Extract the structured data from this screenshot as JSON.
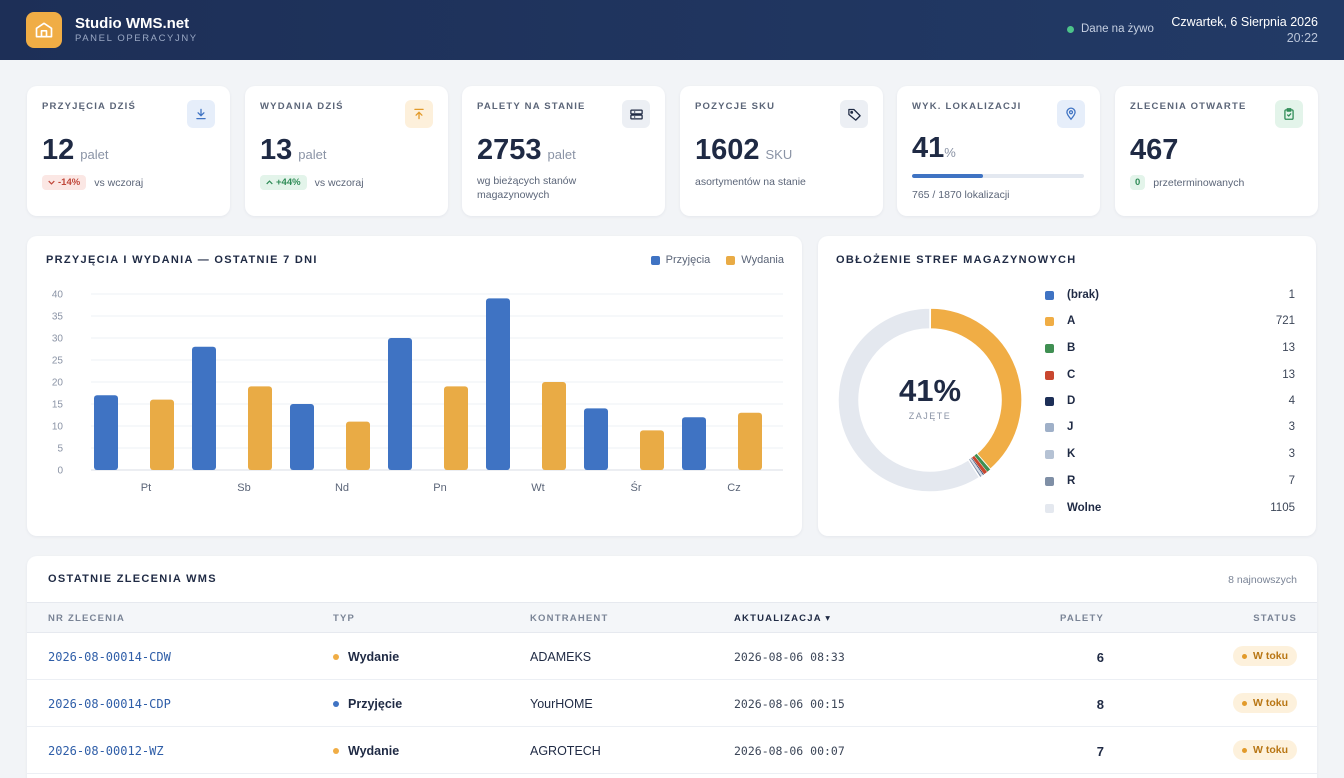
{
  "header": {
    "brand_name": "Studio WMS.net",
    "brand_sub": "PANEL OPERACYJNY",
    "live_label": "Dane na żywo",
    "date": "Czwartek, 6 Sierpnia 2026",
    "time": "20:22"
  },
  "kpis": [
    {
      "label": "PRZYJĘCIA DZIŚ",
      "value": "12",
      "unit": "palet",
      "delta": "-14%",
      "delta_dir": "down",
      "compare": "vs wczoraj",
      "icon": "download-icon"
    },
    {
      "label": "WYDANIA DZIŚ",
      "value": "13",
      "unit": "palet",
      "delta": "+44%",
      "delta_dir": "up",
      "compare": "vs wczoraj",
      "icon": "upload-icon"
    },
    {
      "label": "PALETY NA STANIE",
      "value": "2753",
      "unit": "palet",
      "description": "wg bieżących stanów magazynowych",
      "icon": "pallet-icon"
    },
    {
      "label": "POZYCJE SKU",
      "value": "1602",
      "unit": "SKU",
      "description": "asortymentów na stanie",
      "icon": "tag-icon"
    },
    {
      "label": "WYK. LOKALIZACJI",
      "value": "41",
      "unit": "%",
      "progress": 0.41,
      "progress_text": "765 / 1870 lokalizacji",
      "icon": "location-pin-icon"
    },
    {
      "label": "ZLECENIA OTWARTE",
      "value": "467",
      "badge": "0",
      "badge_text": "przeterminowanych",
      "icon": "clipboard-check-icon"
    }
  ],
  "bar_chart_panel": {
    "title": "PRZYJĘCIA I WYDANIA — OSTATNIE 7 DNI"
  },
  "zones_panel": {
    "title": "OBŁOŻENIE STREF MAGAZYNOWYCH",
    "center_value": "41%",
    "center_label": "ZAJĘTE",
    "zones": [
      {
        "name": "(brak)",
        "count": "1",
        "color": "#3f73c3"
      },
      {
        "name": "A",
        "count": "721",
        "color": "#f0ad45"
      },
      {
        "name": "B",
        "count": "13",
        "color": "#3f8f52"
      },
      {
        "name": "C",
        "count": "13",
        "color": "#c9472f"
      },
      {
        "name": "D",
        "count": "4",
        "color": "#1d2f57"
      },
      {
        "name": "J",
        "count": "3",
        "color": "#9fb0c8"
      },
      {
        "name": "K",
        "count": "3",
        "color": "#b5c2d4"
      },
      {
        "name": "R",
        "count": "7",
        "color": "#7f8fa6"
      },
      {
        "name": "Wolne",
        "count": "1105",
        "color": "#e4e8ef"
      }
    ]
  },
  "orders_table": {
    "title": "OSTATNIE ZLECENIA WMS",
    "subtitle": "8 najnowszych",
    "columns": {
      "id": "NR ZLECENIA",
      "type": "TYP",
      "contractor": "KONTRAHENT",
      "updated": "AKTUALIZACJA ▾",
      "pallets": "PALETY",
      "status": "STATUS"
    },
    "rows": [
      {
        "id": "2026-08-00014-CDW",
        "type": "Wydanie",
        "type_color": "#f0ad45",
        "contractor": "ADAMEKS",
        "updated": "2026-08-06 08:33",
        "pallets": "6",
        "status": "W toku"
      },
      {
        "id": "2026-08-00014-CDP",
        "type": "Przyjęcie",
        "type_color": "#3f73c3",
        "contractor": "YourHOME",
        "updated": "2026-08-06 00:15",
        "pallets": "8",
        "status": "W toku"
      },
      {
        "id": "2026-08-00012-WZ",
        "type": "Wydanie",
        "type_color": "#f0ad45",
        "contractor": "AGROTECH",
        "updated": "2026-08-06 00:07",
        "pallets": "7",
        "status": "W toku"
      }
    ]
  },
  "chart_data": [
    {
      "type": "bar",
      "categories": [
        "Pt",
        "Sb",
        "Nd",
        "Pn",
        "Wt",
        "Śr",
        "Cz"
      ],
      "series": [
        {
          "name": "Przyjęcia",
          "values": [
            17,
            28,
            15,
            30,
            39,
            14,
            12
          ],
          "color": "#3f73c3"
        },
        {
          "name": "Wydania",
          "values": [
            16,
            19,
            11,
            19,
            20,
            9,
            13
          ],
          "color": "#e9ab45"
        }
      ],
      "ylim": [
        0,
        40
      ],
      "yticks": [
        0,
        5,
        10,
        15,
        20,
        25,
        30,
        35,
        40
      ],
      "grid": true,
      "legend": "top-right"
    },
    {
      "type": "pie",
      "variant": "donut",
      "labels": [
        "(brak)",
        "A",
        "B",
        "C",
        "D",
        "J",
        "K",
        "R",
        "Wolne"
      ],
      "values": [
        1,
        721,
        13,
        13,
        4,
        3,
        3,
        7,
        1105
      ],
      "colors": [
        "#3f73c3",
        "#f0ad45",
        "#3f8f52",
        "#c9472f",
        "#1d2f57",
        "#9fb0c8",
        "#b5c2d4",
        "#7f8fa6",
        "#e4e8ef"
      ]
    }
  ]
}
